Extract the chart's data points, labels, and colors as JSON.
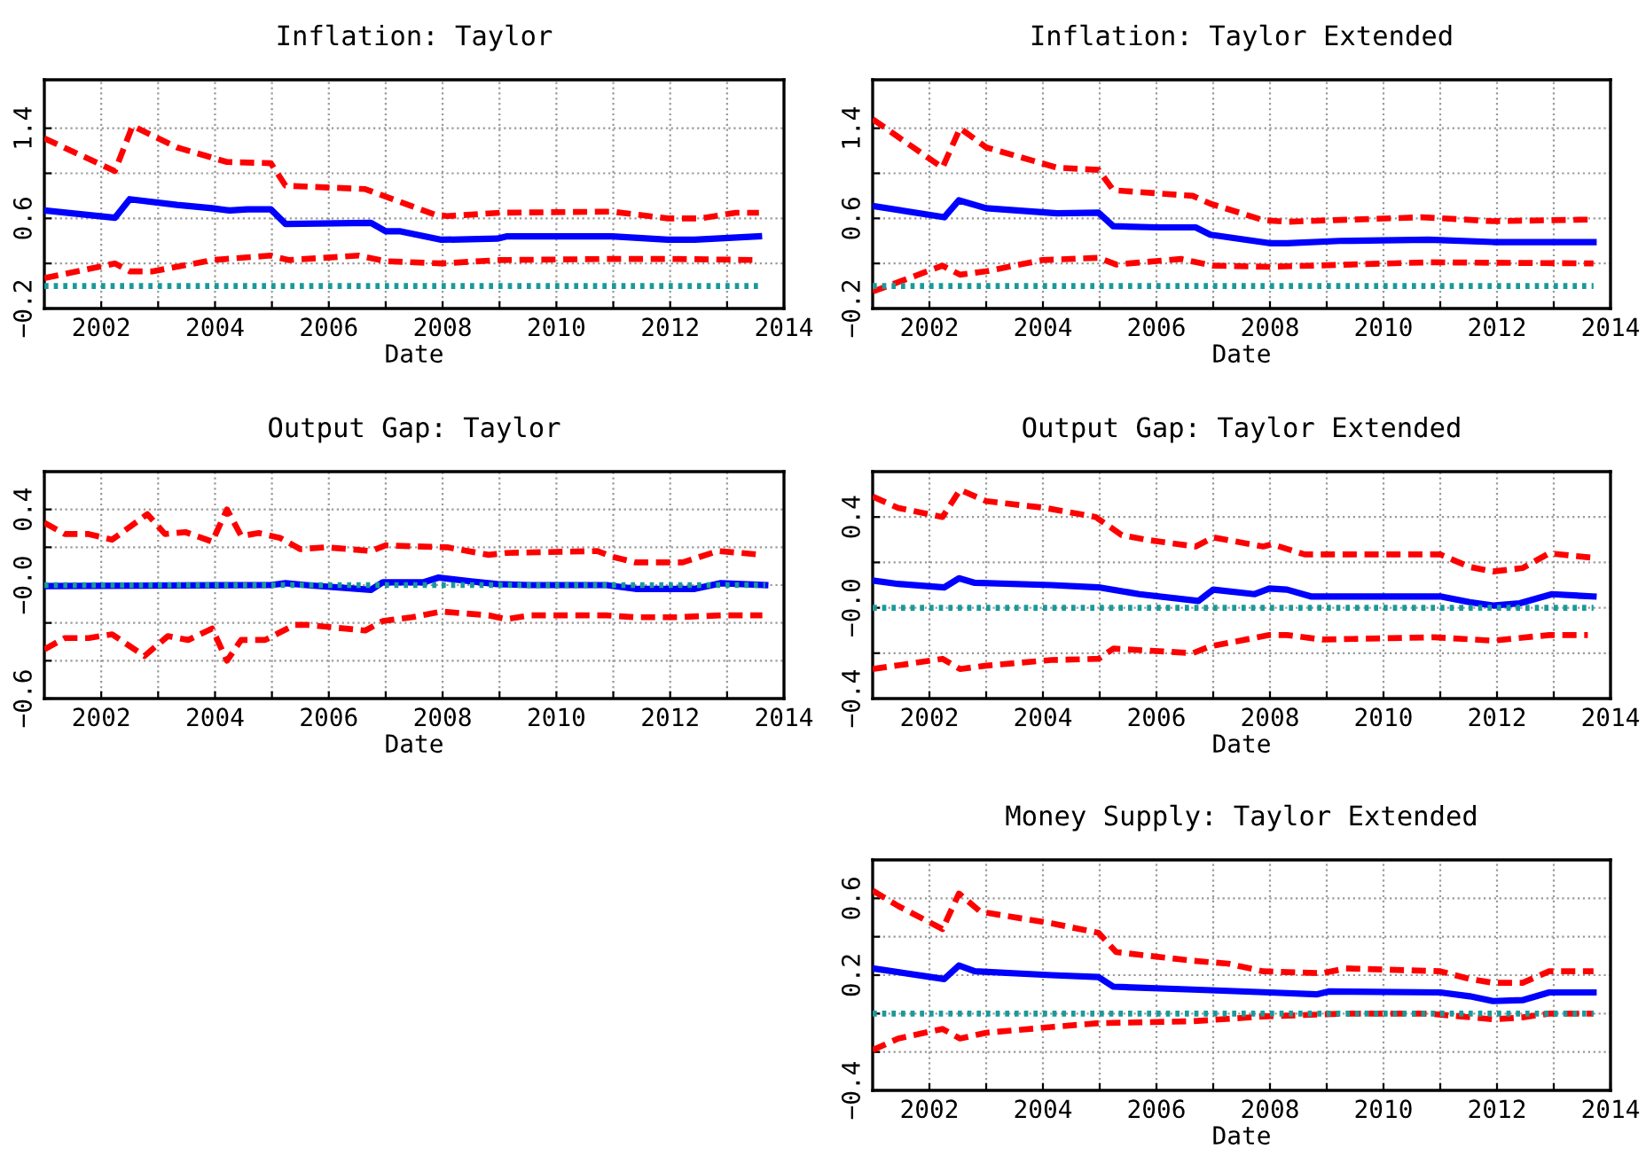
{
  "chart_data": [
    {
      "type": "line",
      "title": "Inflation: Taylor",
      "xlabel": "Date",
      "xlim": [
        2001,
        2014
      ],
      "xticks": [
        2002,
        {
          "value": 2003,
          "label": null
        },
        2004,
        {
          "value": 2005,
          "label": null
        },
        2006,
        {
          "value": 2007,
          "label": null
        },
        2008,
        {
          "value": 2009,
          "label": null
        },
        2010,
        {
          "value": 2011,
          "label": null
        },
        2012,
        {
          "value": 2013,
          "label": null
        },
        2014
      ],
      "ylim": [
        -0.2,
        1.83
      ],
      "yticks": [
        {
          "value": -0.2,
          "label": "−0.2"
        },
        {
          "value": 0.2,
          "label": null
        },
        {
          "value": 0.6,
          "label": "0.6"
        },
        {
          "value": 1,
          "label": null
        },
        {
          "value": 1.4,
          "label": "1.4"
        }
      ],
      "grid": true,
      "series": [
        {
          "color": "#1a9a9a",
          "line_style": "dotted",
          "x": [
            2001.0,
            2013.6
          ],
          "values": [
            0,
            0
          ]
        },
        {
          "color": "#ff0000",
          "line_style": "dashed",
          "x": [
            2001.0,
            2002.24,
            2002.55,
            2003.33,
            2004.21,
            2004.98,
            2005.24,
            2006.64,
            2007.88,
            2008.08,
            2009.01,
            2010.98,
            2011.96,
            2012.53,
            2013.15,
            2013.56
          ],
          "values": [
            1.31,
            1.02,
            1.42,
            1.23,
            1.1,
            1.09,
            0.89,
            0.86,
            0.63,
            0.62,
            0.65,
            0.66,
            0.6,
            0.6,
            0.65,
            0.65
          ]
        },
        {
          "color": "#ff0000",
          "line_style": "dashed",
          "x": [
            2001.0,
            2002.24,
            2002.5,
            2002.91,
            2003.95,
            2004.98,
            2005.29,
            2006.53,
            2007.0,
            2007.98,
            2009.01,
            2010.98,
            2011.96,
            2013.56
          ],
          "values": [
            0.07,
            0.2,
            0.13,
            0.13,
            0.23,
            0.27,
            0.23,
            0.27,
            0.22,
            0.2,
            0.23,
            0.24,
            0.24,
            0.23
          ]
        },
        {
          "color": "#0000ff",
          "line_style": "solid",
          "x": [
            2001.0,
            2002.24,
            2002.5,
            2003.33,
            2003.95,
            2004.26,
            2004.57,
            2004.98,
            2005.24,
            2006.74,
            2007.0,
            2007.26,
            2007.98,
            2008.96,
            2009.12,
            2010.98,
            2011.96,
            2012.43,
            2013.56
          ],
          "values": [
            0.67,
            0.605,
            0.77,
            0.72,
            0.69,
            0.67,
            0.68,
            0.68,
            0.55,
            0.56,
            0.485,
            0.485,
            0.41,
            0.42,
            0.44,
            0.44,
            0.41,
            0.41,
            0.44
          ]
        }
      ]
    },
    {
      "type": "line",
      "title": "Inflation: Taylor Extended",
      "xlabel": "Date",
      "xlim": [
        2001,
        2014
      ],
      "xticks": [
        2002,
        {
          "value": 2003,
          "label": null
        },
        2004,
        {
          "value": 2005,
          "label": null
        },
        2006,
        {
          "value": 2007,
          "label": null
        },
        2008,
        {
          "value": 2009,
          "label": null
        },
        2010,
        {
          "value": 2011,
          "label": null
        },
        2012,
        {
          "value": 2013,
          "label": null
        },
        2014
      ],
      "ylim": [
        -0.2,
        1.83
      ],
      "yticks": [
        {
          "value": -0.2,
          "label": "−0.2"
        },
        {
          "value": 0.2,
          "label": null
        },
        {
          "value": 0.6,
          "label": "0.6"
        },
        {
          "value": 1,
          "label": null
        },
        {
          "value": 1.4,
          "label": "1.4"
        }
      ],
      "grid": true,
      "series": [
        {
          "color": "#1a9a9a",
          "line_style": "dotted",
          "x": [
            2001.0,
            2013.7
          ],
          "values": [
            0,
            0
          ]
        },
        {
          "color": "#ff0000",
          "line_style": "dashed",
          "x": [
            2001.0,
            2002.23,
            2002.54,
            2003.0,
            2004.25,
            2004.98,
            2005.24,
            2006.64,
            2006.95,
            2007.88,
            2008.3,
            2010.69,
            2011.93,
            2013.7
          ],
          "values": [
            1.48,
            1.05,
            1.4,
            1.23,
            1.05,
            1.03,
            0.85,
            0.8,
            0.73,
            0.585,
            0.57,
            0.61,
            0.575,
            0.59
          ]
        },
        {
          "color": "#ff0000",
          "line_style": "dashed",
          "x": [
            2001.0,
            2002.23,
            2002.54,
            2003.0,
            2003.99,
            2004.98,
            2005.29,
            2006.43,
            2007.0,
            2007.99,
            2010.79,
            2013.7
          ],
          "values": [
            -0.05,
            0.18,
            0.1,
            0.13,
            0.23,
            0.25,
            0.19,
            0.24,
            0.18,
            0.17,
            0.21,
            0.2
          ]
        },
        {
          "color": "#0000ff",
          "line_style": "solid",
          "x": [
            2001.0,
            2002.26,
            2002.52,
            2003.0,
            2004.25,
            2004.98,
            2005.24,
            2006.02,
            2006.69,
            2006.95,
            2007.99,
            2008.3,
            2009.23,
            2010.79,
            2011.93,
            2013.7
          ],
          "values": [
            0.71,
            0.61,
            0.76,
            0.69,
            0.645,
            0.65,
            0.53,
            0.52,
            0.52,
            0.455,
            0.38,
            0.38,
            0.4,
            0.41,
            0.39,
            0.39
          ]
        }
      ]
    },
    {
      "type": "line",
      "title": "Output Gap: Taylor",
      "xlabel": "Date",
      "xlim": [
        2001,
        2014
      ],
      "xticks": [
        2002,
        {
          "value": 2003,
          "label": null
        },
        2004,
        {
          "value": 2005,
          "label": null
        },
        2006,
        {
          "value": 2007,
          "label": null
        },
        2008,
        {
          "value": 2009,
          "label": null
        },
        2010,
        {
          "value": 2011,
          "label": null
        },
        2012,
        {
          "value": 2013,
          "label": null
        },
        2014
      ],
      "ylim": [
        -0.6,
        0.6
      ],
      "yticks": [
        {
          "value": -0.6,
          "label": "−0.6"
        },
        {
          "value": -0.4,
          "label": null
        },
        {
          "value": -0.2,
          "label": null
        },
        {
          "value": 0,
          "label": "−0.0"
        },
        {
          "value": 0.2,
          "label": null
        },
        0.4
      ],
      "grid": true,
      "series": [
        {
          "color": "#1a9a9a",
          "line_style": "dotted",
          "x": [
            2001.0,
            2013.67
          ],
          "values": [
            0,
            0
          ]
        },
        {
          "color": "#ff0000",
          "line_style": "dashed",
          "x": [
            2001.0,
            2001.36,
            2001.78,
            2002.19,
            2002.81,
            2003.12,
            2003.48,
            2003.95,
            2004.21,
            2004.46,
            2004.77,
            2005.14,
            2005.5,
            2005.96,
            2006.74,
            2007.0,
            2008.08,
            2008.81,
            2009.12,
            2010.72,
            2010.98,
            2011.39,
            2012.22,
            2012.84,
            2013.25,
            2013.62
          ],
          "values": [
            0.33,
            0.27,
            0.27,
            0.24,
            0.375,
            0.27,
            0.28,
            0.23,
            0.4,
            0.26,
            0.275,
            0.25,
            0.19,
            0.2,
            0.18,
            0.21,
            0.2,
            0.16,
            0.17,
            0.18,
            0.15,
            0.12,
            0.12,
            0.18,
            0.17,
            0.16
          ]
        },
        {
          "color": "#ff0000",
          "line_style": "dashed",
          "x": [
            2001.0,
            2001.36,
            2001.78,
            2002.19,
            2002.76,
            2003.17,
            2003.53,
            2003.95,
            2004.21,
            2004.46,
            2004.88,
            2005.4,
            2005.6,
            2006.64,
            2006.95,
            2007.46,
            2007.98,
            2008.81,
            2009.12,
            2009.53,
            2010.88,
            2011.39,
            2012.12,
            2012.89,
            2013.62
          ],
          "values": [
            -0.34,
            -0.28,
            -0.28,
            -0.26,
            -0.375,
            -0.27,
            -0.29,
            -0.23,
            -0.4,
            -0.29,
            -0.29,
            -0.21,
            -0.21,
            -0.24,
            -0.19,
            -0.17,
            -0.14,
            -0.16,
            -0.18,
            -0.16,
            -0.16,
            -0.17,
            -0.17,
            -0.16,
            -0.16
          ]
        },
        {
          "color": "#0000ff",
          "line_style": "solid",
          "x": [
            2001.0,
            2004.98,
            2005.24,
            2005.6,
            2006.74,
            2006.95,
            2007.67,
            2007.93,
            2008.5,
            2008.96,
            2009.53,
            2010.88,
            2011.39,
            2012.43,
            2012.89,
            2013.67
          ],
          "values": [
            -0.005,
            0,
            0.01,
            0,
            -0.025,
            0.015,
            0.015,
            0.04,
            0.02,
            0.005,
            0,
            0,
            -0.02,
            -0.02,
            0.01,
            0
          ]
        }
      ]
    },
    {
      "type": "line",
      "title": "Output Gap: Taylor Extended",
      "xlabel": "Date",
      "xlim": [
        2001,
        2014
      ],
      "xticks": [
        2002,
        {
          "value": 2003,
          "label": null
        },
        2004,
        {
          "value": 2005,
          "label": null
        },
        2006,
        {
          "value": 2007,
          "label": null
        },
        2008,
        {
          "value": 2009,
          "label": null
        },
        2010,
        {
          "value": 2011,
          "label": null
        },
        2012,
        {
          "value": 2013,
          "label": null
        },
        2014
      ],
      "ylim": [
        -0.4,
        0.6
      ],
      "yticks": [
        {
          "value": -0.4,
          "label": "−0.4"
        },
        {
          "value": -0.2,
          "label": null
        },
        {
          "value": 0,
          "label": "−0.0"
        },
        {
          "value": 0.2,
          "label": null
        },
        0.4
      ],
      "grid": true,
      "series": [
        {
          "color": "#1a9a9a",
          "line_style": "dotted",
          "x": [
            2001.0,
            2013.7
          ],
          "values": [
            0,
            0
          ]
        },
        {
          "color": "#ff0000",
          "line_style": "dashed",
          "x": [
            2001.0,
            2001.45,
            2002.23,
            2002.54,
            2003.0,
            2004.04,
            2004.93,
            2005.39,
            2005.81,
            2006.69,
            2007.0,
            2007.88,
            2008.04,
            2008.61,
            2011.0,
            2011.52,
            2011.93,
            2012.45,
            2012.92,
            2013.7
          ],
          "values": [
            0.49,
            0.44,
            0.4,
            0.52,
            0.47,
            0.44,
            0.4,
            0.32,
            0.3,
            0.27,
            0.31,
            0.27,
            0.28,
            0.235,
            0.235,
            0.18,
            0.16,
            0.175,
            0.24,
            0.22
          ]
        },
        {
          "color": "#ff0000",
          "line_style": "dashed",
          "x": [
            2001.0,
            2002.23,
            2002.54,
            2003.0,
            2004.15,
            2004.98,
            2005.24,
            2006.64,
            2006.95,
            2007.99,
            2008.3,
            2008.92,
            2010.9,
            2011.93,
            2012.92,
            2013.6
          ],
          "values": [
            -0.27,
            -0.225,
            -0.27,
            -0.255,
            -0.23,
            -0.225,
            -0.18,
            -0.2,
            -0.17,
            -0.12,
            -0.12,
            -0.14,
            -0.13,
            -0.145,
            -0.12,
            -0.12
          ]
        },
        {
          "color": "#0000ff",
          "line_style": "solid",
          "x": [
            2001.0,
            2001.45,
            2002.26,
            2002.52,
            2002.8,
            2004.15,
            2004.98,
            2005.7,
            2006.74,
            2007.0,
            2007.73,
            2007.99,
            2008.3,
            2008.72,
            2011.0,
            2011.52,
            2011.93,
            2012.4,
            2012.97,
            2013.7
          ],
          "values": [
            0.12,
            0.105,
            0.09,
            0.13,
            0.11,
            0.1,
            0.09,
            0.06,
            0.03,
            0.08,
            0.06,
            0.085,
            0.08,
            0.05,
            0.05,
            0.025,
            0.01,
            0.02,
            0.06,
            0.05
          ]
        }
      ]
    },
    {
      "type": "line",
      "title": "Money Supply: Taylor Extended",
      "xlabel": "Date",
      "xlim": [
        2001,
        2014
      ],
      "xticks": [
        2002,
        {
          "value": 2003,
          "label": null
        },
        2004,
        {
          "value": 2005,
          "label": null
        },
        2006,
        {
          "value": 2007,
          "label": null
        },
        2008,
        {
          "value": 2009,
          "label": null
        },
        2010,
        {
          "value": 2011,
          "label": null
        },
        2012,
        {
          "value": 2013,
          "label": null
        },
        2014
      ],
      "ylim": [
        -0.4,
        0.8
      ],
      "yticks": [
        {
          "value": -0.4,
          "label": "−0.4"
        },
        {
          "value": -0.2,
          "label": null
        },
        {
          "value": 0,
          "label": null
        },
        0.2,
        {
          "value": 0.4,
          "label": null
        },
        0.6
      ],
      "grid": true,
      "series": [
        {
          "color": "#1a9a9a",
          "line_style": "dotted",
          "x": [
            2001.0,
            2013.7
          ],
          "values": [
            0,
            0
          ]
        },
        {
          "color": "#ff0000",
          "line_style": "dashed",
          "x": [
            2001.0,
            2001.45,
            2002.23,
            2002.52,
            2002.9,
            2004.15,
            2004.98,
            2005.29,
            2006.64,
            2007.26,
            2007.88,
            2008.92,
            2009.34,
            2011.0,
            2011.52,
            2011.93,
            2012.45,
            2012.92,
            2013.7
          ],
          "values": [
            0.64,
            0.56,
            0.44,
            0.625,
            0.53,
            0.47,
            0.42,
            0.32,
            0.275,
            0.26,
            0.22,
            0.21,
            0.235,
            0.22,
            0.18,
            0.16,
            0.16,
            0.22,
            0.22
          ]
        },
        {
          "color": "#ff0000",
          "line_style": "dashed",
          "x": [
            2001.0,
            2001.45,
            2002.23,
            2002.54,
            2003.0,
            2004.15,
            2004.98,
            2006.64,
            2007.88,
            2009.34,
            2010.79,
            2011.93,
            2012.45,
            2012.92,
            2013.7
          ],
          "values": [
            -0.19,
            -0.13,
            -0.08,
            -0.13,
            -0.1,
            -0.07,
            -0.05,
            -0.04,
            -0.015,
            0,
            0,
            -0.03,
            -0.02,
            0,
            0
          ]
        },
        {
          "color": "#0000ff",
          "line_style": "solid",
          "x": [
            2001.0,
            2002.26,
            2002.52,
            2002.8,
            2004.15,
            2004.98,
            2005.24,
            2006.64,
            2007.99,
            2008.82,
            2009.03,
            2011.0,
            2011.52,
            2011.93,
            2012.45,
            2012.92,
            2013.7
          ],
          "values": [
            0.235,
            0.18,
            0.25,
            0.22,
            0.2,
            0.19,
            0.14,
            0.125,
            0.11,
            0.1,
            0.115,
            0.11,
            0.09,
            0.065,
            0.07,
            0.11,
            0.11
          ]
        }
      ]
    }
  ]
}
